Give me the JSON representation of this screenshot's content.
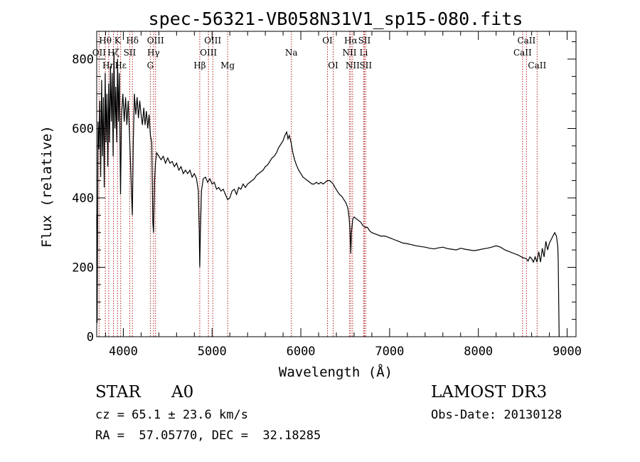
{
  "chart_data": {
    "type": "line",
    "title": "spec-56321-VB058N31V1_sp15-080.fits",
    "xlabel": "Wavelength (Å)",
    "ylabel": "Flux (relative)",
    "xlim": [
      3700,
      9100
    ],
    "ylim": [
      0,
      880
    ],
    "xticks": [
      4000,
      5000,
      6000,
      7000,
      8000,
      9000
    ],
    "yticks": [
      0,
      200,
      400,
      600,
      800
    ],
    "grid": false,
    "series": [
      {
        "color": "#000000",
        "points": [
          [
            3700,
            350
          ],
          [
            3705,
            40
          ],
          [
            3715,
            620
          ],
          [
            3725,
            540
          ],
          [
            3735,
            680
          ],
          [
            3745,
            460
          ],
          [
            3755,
            740
          ],
          [
            3765,
            520
          ],
          [
            3775,
            690
          ],
          [
            3785,
            430
          ],
          [
            3795,
            760
          ],
          [
            3805,
            560
          ],
          [
            3815,
            700
          ],
          [
            3825,
            490
          ],
          [
            3835,
            730
          ],
          [
            3845,
            560
          ],
          [
            3855,
            780
          ],
          [
            3865,
            620
          ],
          [
            3875,
            760
          ],
          [
            3885,
            520
          ],
          [
            3895,
            820
          ],
          [
            3905,
            600
          ],
          [
            3915,
            720
          ],
          [
            3925,
            560
          ],
          [
            3935,
            800
          ],
          [
            3945,
            620
          ],
          [
            3955,
            760
          ],
          [
            3968,
            410
          ],
          [
            3980,
            640
          ],
          [
            3995,
            700
          ],
          [
            4010,
            620
          ],
          [
            4025,
            690
          ],
          [
            4040,
            610
          ],
          [
            4055,
            680
          ],
          [
            4070,
            580
          ],
          [
            4090,
            430
          ],
          [
            4101,
            350
          ],
          [
            4112,
            560
          ],
          [
            4125,
            700
          ],
          [
            4140,
            640
          ],
          [
            4155,
            690
          ],
          [
            4170,
            630
          ],
          [
            4185,
            680
          ],
          [
            4200,
            640
          ],
          [
            4215,
            610
          ],
          [
            4230,
            660
          ],
          [
            4245,
            610
          ],
          [
            4260,
            650
          ],
          [
            4275,
            600
          ],
          [
            4290,
            640
          ],
          [
            4305,
            580
          ],
          [
            4320,
            560
          ],
          [
            4332,
            330
          ],
          [
            4340,
            300
          ],
          [
            4352,
            450
          ],
          [
            4362,
            500
          ],
          [
            4375,
            530
          ],
          [
            4400,
            520
          ],
          [
            4425,
            510
          ],
          [
            4450,
            520
          ],
          [
            4475,
            500
          ],
          [
            4500,
            515
          ],
          [
            4525,
            500
          ],
          [
            4550,
            505
          ],
          [
            4575,
            490
          ],
          [
            4600,
            500
          ],
          [
            4625,
            480
          ],
          [
            4650,
            490
          ],
          [
            4675,
            470
          ],
          [
            4700,
            480
          ],
          [
            4725,
            470
          ],
          [
            4750,
            480
          ],
          [
            4775,
            460
          ],
          [
            4800,
            470
          ],
          [
            4825,
            455
          ],
          [
            4845,
            420
          ],
          [
            4855,
            300
          ],
          [
            4861,
            200
          ],
          [
            4868,
            300
          ],
          [
            4880,
            420
          ],
          [
            4900,
            455
          ],
          [
            4925,
            460
          ],
          [
            4950,
            445
          ],
          [
            4975,
            455
          ],
          [
            5000,
            440
          ],
          [
            5025,
            445
          ],
          [
            5050,
            425
          ],
          [
            5075,
            430
          ],
          [
            5100,
            420
          ],
          [
            5125,
            425
          ],
          [
            5150,
            410
          ],
          [
            5175,
            395
          ],
          [
            5200,
            400
          ],
          [
            5225,
            420
          ],
          [
            5250,
            425
          ],
          [
            5275,
            410
          ],
          [
            5300,
            430
          ],
          [
            5325,
            425
          ],
          [
            5350,
            440
          ],
          [
            5375,
            430
          ],
          [
            5400,
            440
          ],
          [
            5425,
            445
          ],
          [
            5450,
            450
          ],
          [
            5475,
            455
          ],
          [
            5500,
            465
          ],
          [
            5525,
            470
          ],
          [
            5550,
            475
          ],
          [
            5575,
            480
          ],
          [
            5600,
            490
          ],
          [
            5625,
            495
          ],
          [
            5650,
            505
          ],
          [
            5675,
            515
          ],
          [
            5700,
            520
          ],
          [
            5725,
            530
          ],
          [
            5750,
            545
          ],
          [
            5775,
            555
          ],
          [
            5800,
            565
          ],
          [
            5820,
            580
          ],
          [
            5840,
            590
          ],
          [
            5855,
            570
          ],
          [
            5870,
            580
          ],
          [
            5890,
            560
          ],
          [
            5910,
            530
          ],
          [
            5930,
            510
          ],
          [
            5950,
            495
          ],
          [
            5975,
            480
          ],
          [
            6000,
            470
          ],
          [
            6025,
            460
          ],
          [
            6050,
            455
          ],
          [
            6075,
            450
          ],
          [
            6100,
            445
          ],
          [
            6125,
            440
          ],
          [
            6150,
            440
          ],
          [
            6175,
            445
          ],
          [
            6200,
            440
          ],
          [
            6225,
            445
          ],
          [
            6250,
            440
          ],
          [
            6275,
            445
          ],
          [
            6300,
            450
          ],
          [
            6325,
            450
          ],
          [
            6345,
            445
          ],
          [
            6365,
            440
          ],
          [
            6385,
            430
          ],
          [
            6410,
            420
          ],
          [
            6435,
            410
          ],
          [
            6460,
            405
          ],
          [
            6485,
            395
          ],
          [
            6510,
            385
          ],
          [
            6530,
            370
          ],
          [
            6545,
            340
          ],
          [
            6555,
            300
          ],
          [
            6563,
            240
          ],
          [
            6570,
            300
          ],
          [
            6585,
            340
          ],
          [
            6600,
            345
          ],
          [
            6625,
            340
          ],
          [
            6650,
            335
          ],
          [
            6675,
            330
          ],
          [
            6700,
            320
          ],
          [
            6725,
            315
          ],
          [
            6750,
            315
          ],
          [
            6775,
            305
          ],
          [
            6800,
            300
          ],
          [
            6850,
            295
          ],
          [
            6900,
            290
          ],
          [
            6950,
            290
          ],
          [
            7000,
            285
          ],
          [
            7050,
            280
          ],
          [
            7100,
            275
          ],
          [
            7150,
            270
          ],
          [
            7200,
            268
          ],
          [
            7250,
            265
          ],
          [
            7300,
            262
          ],
          [
            7350,
            260
          ],
          [
            7400,
            258
          ],
          [
            7450,
            255
          ],
          [
            7500,
            253
          ],
          [
            7550,
            256
          ],
          [
            7600,
            258
          ],
          [
            7650,
            254
          ],
          [
            7700,
            252
          ],
          [
            7750,
            250
          ],
          [
            7800,
            255
          ],
          [
            7850,
            252
          ],
          [
            7900,
            250
          ],
          [
            7950,
            248
          ],
          [
            8000,
            250
          ],
          [
            8050,
            253
          ],
          [
            8100,
            255
          ],
          [
            8150,
            258
          ],
          [
            8200,
            262
          ],
          [
            8250,
            258
          ],
          [
            8300,
            250
          ],
          [
            8350,
            245
          ],
          [
            8400,
            240
          ],
          [
            8450,
            235
          ],
          [
            8500,
            228
          ],
          [
            8540,
            225
          ],
          [
            8560,
            218
          ],
          [
            8580,
            230
          ],
          [
            8600,
            225
          ],
          [
            8620,
            215
          ],
          [
            8640,
            230
          ],
          [
            8660,
            215
          ],
          [
            8680,
            245
          ],
          [
            8700,
            215
          ],
          [
            8720,
            255
          ],
          [
            8740,
            230
          ],
          [
            8760,
            275
          ],
          [
            8780,
            250
          ],
          [
            8800,
            270
          ],
          [
            8820,
            280
          ],
          [
            8840,
            290
          ],
          [
            8860,
            300
          ],
          [
            8880,
            290
          ],
          [
            8895,
            260
          ],
          [
            8900,
            220
          ],
          [
            8905,
            100
          ],
          [
            8910,
            0
          ]
        ]
      }
    ],
    "lines": [
      {
        "label": "Hθ",
        "wl": 3797,
        "row": 1,
        "anchor": "middle"
      },
      {
        "label": "OII",
        "wl": 3727,
        "row": 2,
        "anchor": "middle"
      },
      {
        "label": "Hη",
        "wl": 3835,
        "row": 3,
        "anchor": "middle"
      },
      {
        "label": "Hζ",
        "wl": 3889,
        "row": 2,
        "anchor": "middle"
      },
      {
        "label": "K",
        "wl": 3934,
        "row": 1,
        "anchor": "middle"
      },
      {
        "label": "Hε",
        "wl": 3970,
        "row": 3,
        "anchor": "middle"
      },
      {
        "label": "SII",
        "wl": 4072,
        "row": 2,
        "anchor": "middle"
      },
      {
        "label": "Hδ",
        "wl": 4102,
        "row": 1,
        "anchor": "middle"
      },
      {
        "label": "OIII",
        "wl": 4363,
        "row": 1,
        "anchor": "middle"
      },
      {
        "label": "Hγ",
        "wl": 4340,
        "row": 2,
        "anchor": "middle"
      },
      {
        "label": "G",
        "wl": 4304,
        "row": 3,
        "anchor": "middle"
      },
      {
        "label": "Hβ",
        "wl": 4861,
        "row": 3,
        "anchor": "middle"
      },
      {
        "label": "OIII",
        "wl": 5007,
        "row": 1,
        "anchor": "middle"
      },
      {
        "label": "OIII",
        "wl": 4959,
        "row": 2,
        "anchor": "middle"
      },
      {
        "label": "Mg",
        "wl": 5175,
        "row": 3,
        "anchor": "middle"
      },
      {
        "label": "Na",
        "wl": 5893,
        "row": 2,
        "anchor": "middle"
      },
      {
        "label": "OI",
        "wl": 6300,
        "row": 1,
        "anchor": "middle"
      },
      {
        "label": "OI",
        "wl": 6364,
        "row": 3,
        "anchor": "middle"
      },
      {
        "label": "Hα",
        "wl": 6563,
        "row": 1,
        "anchor": "middle"
      },
      {
        "label": "NII",
        "wl": 6548,
        "row": 2,
        "anchor": "middle"
      },
      {
        "label": "NII",
        "wl": 6583,
        "row": 3,
        "anchor": "middle"
      },
      {
        "label": "SII",
        "wl": 6716,
        "row": 1,
        "anchor": "middle"
      },
      {
        "label": "Li",
        "wl": 6708,
        "row": 2,
        "anchor": "middle"
      },
      {
        "label": "SII",
        "wl": 6731,
        "row": 3,
        "anchor": "middle"
      },
      {
        "label": "CaII",
        "wl": 8542,
        "row": 1,
        "anchor": "middle"
      },
      {
        "label": "CaII",
        "wl": 8498,
        "row": 2,
        "anchor": "middle"
      },
      {
        "label": "CaII",
        "wl": 8662,
        "row": 3,
        "anchor": "middle"
      }
    ],
    "line_color": "#b22222"
  },
  "info": {
    "class_label": "STAR",
    "subclass": "A0",
    "survey": "LAMOST DR3",
    "redshift": "cz = 65.1 ± 23.6 km/s",
    "obs_date": "Obs-Date: 20130128",
    "coords": "RA =  57.05770, DEC =  32.18285"
  }
}
